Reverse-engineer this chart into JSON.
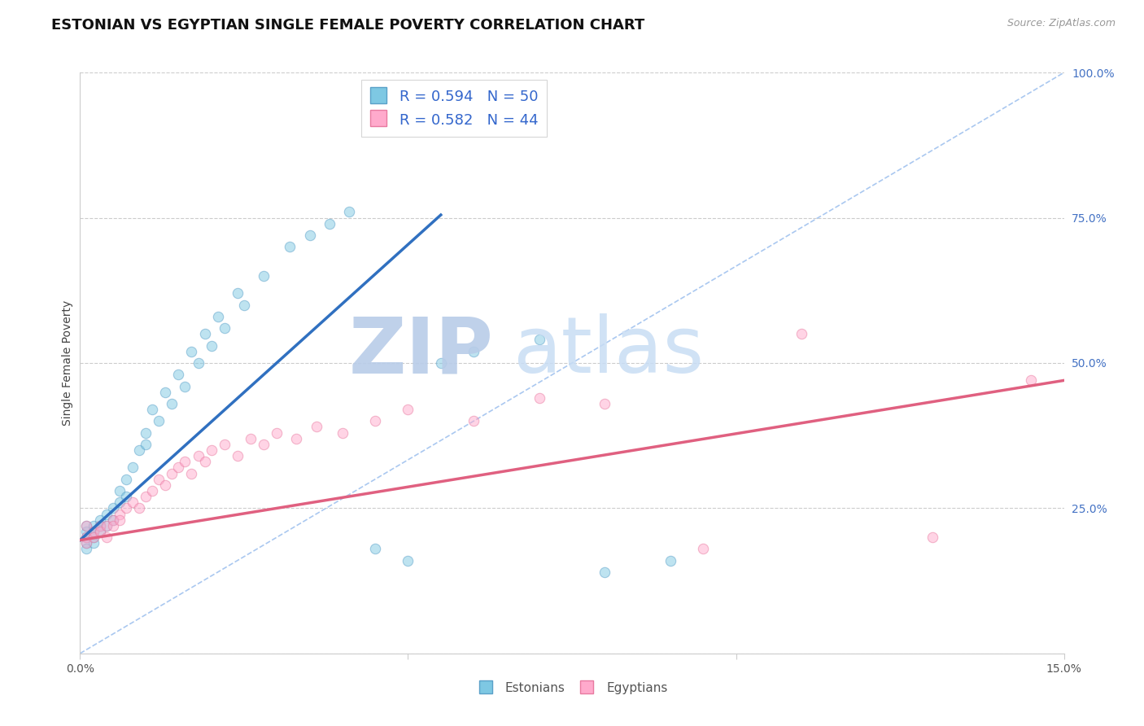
{
  "title": "ESTONIAN VS EGYPTIAN SINGLE FEMALE POVERTY CORRELATION CHART",
  "source_text": "Source: ZipAtlas.com",
  "ylabel": "Single Female Poverty",
  "x_min": 0.0,
  "x_max": 0.15,
  "y_min": 0.0,
  "y_max": 1.0,
  "grid_color": "#cccccc",
  "background_color": "#ffffff",
  "watermark_text": "ZIPatlas",
  "watermark_color": "#ccddf0",
  "estonian_color": "#7ec8e3",
  "estonian_edge": "#5aa0c8",
  "egyptian_color": "#ffaacc",
  "egyptian_edge": "#e87aa0",
  "estonian_line_color": "#3070c0",
  "egyptian_line_color": "#e06080",
  "ref_line_color": "#aac8f0",
  "legend_estonian": "R = 0.594   N = 50",
  "legend_egyptian": "R = 0.582   N = 44",
  "legend_label_estonian": "Estonians",
  "legend_label_egyptian": "Egyptians",
  "legend_text_color": "#3366cc",
  "title_fontsize": 13,
  "axis_label_fontsize": 10,
  "tick_fontsize": 10,
  "scatter_alpha": 0.5,
  "scatter_size": 80,
  "estonian_x": [
    0.001,
    0.001,
    0.001,
    0.001,
    0.001,
    0.002,
    0.002,
    0.002,
    0.002,
    0.003,
    0.003,
    0.003,
    0.004,
    0.004,
    0.005,
    0.005,
    0.006,
    0.006,
    0.007,
    0.007,
    0.008,
    0.009,
    0.01,
    0.011,
    0.013,
    0.015,
    0.017,
    0.019,
    0.021,
    0.024,
    0.01,
    0.012,
    0.014,
    0.016,
    0.018,
    0.02,
    0.022,
    0.025,
    0.028,
    0.032,
    0.035,
    0.038,
    0.041,
    0.045,
    0.05,
    0.055,
    0.06,
    0.07,
    0.08,
    0.09
  ],
  "estonian_y": [
    0.2,
    0.19,
    0.21,
    0.18,
    0.22,
    0.21,
    0.2,
    0.19,
    0.22,
    0.22,
    0.21,
    0.23,
    0.24,
    0.22,
    0.25,
    0.23,
    0.26,
    0.28,
    0.3,
    0.27,
    0.32,
    0.35,
    0.38,
    0.42,
    0.45,
    0.48,
    0.52,
    0.55,
    0.58,
    0.62,
    0.36,
    0.4,
    0.43,
    0.46,
    0.5,
    0.53,
    0.56,
    0.6,
    0.65,
    0.7,
    0.72,
    0.74,
    0.76,
    0.18,
    0.16,
    0.5,
    0.52,
    0.54,
    0.14,
    0.16
  ],
  "egyptian_x": [
    0.001,
    0.001,
    0.001,
    0.002,
    0.002,
    0.003,
    0.003,
    0.004,
    0.004,
    0.005,
    0.005,
    0.006,
    0.006,
    0.007,
    0.008,
    0.009,
    0.01,
    0.011,
    0.012,
    0.013,
    0.014,
    0.015,
    0.016,
    0.017,
    0.018,
    0.019,
    0.02,
    0.022,
    0.024,
    0.026,
    0.028,
    0.03,
    0.033,
    0.036,
    0.04,
    0.045,
    0.05,
    0.06,
    0.07,
    0.08,
    0.095,
    0.11,
    0.13,
    0.145
  ],
  "egyptian_y": [
    0.22,
    0.2,
    0.19,
    0.21,
    0.2,
    0.22,
    0.21,
    0.22,
    0.2,
    0.23,
    0.22,
    0.24,
    0.23,
    0.25,
    0.26,
    0.25,
    0.27,
    0.28,
    0.3,
    0.29,
    0.31,
    0.32,
    0.33,
    0.31,
    0.34,
    0.33,
    0.35,
    0.36,
    0.34,
    0.37,
    0.36,
    0.38,
    0.37,
    0.39,
    0.38,
    0.4,
    0.42,
    0.4,
    0.44,
    0.43,
    0.18,
    0.55,
    0.2,
    0.47
  ],
  "est_line_x": [
    0.0,
    0.055
  ],
  "est_line_y": [
    0.195,
    0.755
  ],
  "egy_line_x": [
    0.0,
    0.15
  ],
  "egy_line_y": [
    0.195,
    0.47
  ]
}
